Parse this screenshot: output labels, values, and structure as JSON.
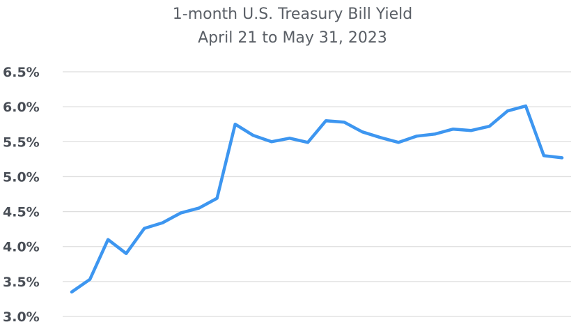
{
  "chart_data": {
    "type": "line",
    "title": "1-month U.S. Treasury Bill Yield",
    "subtitle": "April 21 to May 31, 2023",
    "xlabel": "",
    "ylabel": "",
    "ylim": [
      3.0,
      6.5
    ],
    "y_ticks": [
      "3.0%",
      "3.5%",
      "4.0%",
      "4.5%",
      "5.0%",
      "5.5%",
      "6.0%",
      "6.5%"
    ],
    "y_tick_values": [
      3.0,
      3.5,
      4.0,
      4.5,
      5.0,
      5.5,
      6.0,
      6.5
    ],
    "grid": true,
    "legend": "none",
    "series": [
      {
        "color": "#3d96f0",
        "values": [
          3.35,
          3.53,
          4.1,
          3.9,
          4.26,
          4.34,
          4.48,
          4.55,
          4.69,
          5.75,
          5.59,
          5.5,
          5.55,
          5.49,
          5.8,
          5.78,
          5.64,
          5.56,
          5.49,
          5.58,
          5.61,
          5.68,
          5.66,
          5.72,
          5.94,
          6.01,
          5.3,
          5.27
        ]
      }
    ]
  }
}
